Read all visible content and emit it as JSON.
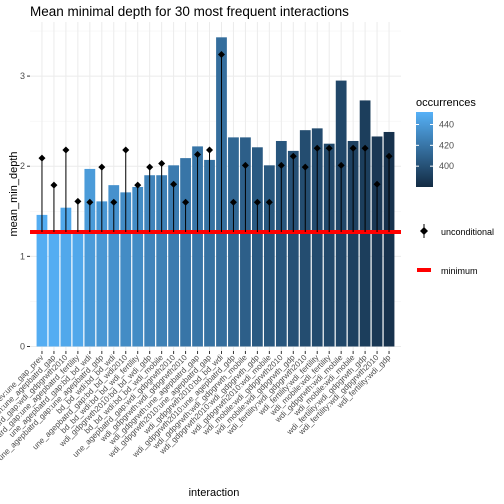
{
  "chart_data": {
    "type": "bar",
    "title": "Mean minimal depth for 30 most frequent interactions",
    "xlabel": "interaction",
    "ylabel": "mean_min_depth",
    "ylim": [
      -0.05,
      3.6
    ],
    "yticks": [
      0,
      1,
      2,
      3
    ],
    "grid": true,
    "categories": [
      "une_ageprev:une_gap_prev",
      "wdi_gdpgrwth:une_agepbatrd_gap",
      "une_agepbatrd_gap:wdi_gdpgrwth2010",
      "une_agepbatrd_gap:une_agepbatrd_fertility",
      "une_agepbatrd_gap:bd_bd_wdi",
      "une_agepbatrd_gap:une_agepbatrd_gdp",
      "bd_bd_wdi:bd_bd_wdi",
      "une_agepbatrd_gap:bd_bd_wdi2010",
      "bd_bd_wdi:bd_bd_wdi_fertility",
      "wdi_gdpgrwth2010:bd_bd_wdi_gdp",
      "bd_bd_wdi:bd_bd_wdi_mobile",
      "une_agepbatrd_gap:wdi_gdpgrwth2010",
      "wdi_gdpgrwth:wdi_gdpgrwth2010",
      "wdi_gdpgrwth:une_agepbatrd_gap",
      "wdi_gdpgrwth2010:une_agepbatrd_gap",
      "wdi_gdpgrwth2010:bd_bd_wdi",
      "wdi_gdpgrwth2010:une_agepbatrd_gdp",
      "wdi_gdpgrwth:wdi_gdpgrwth_mobile",
      "wdi_gdpgrwth2010:wdi_gdpgrwth_gdp",
      "wdi_gdpgrwth2010:wdi_mobile",
      "wdi_mobile:wdi_gdpgrwth2010",
      "wdi_mobile:wdi_gdpgrwth_gdp",
      "wdi_fertility:wdi_gdpgrwth2010",
      "wdi_fertility:wdi_fertility",
      "wdi_mobile:wdi_fertility",
      "wdi_gdpgrwth:wdi_mobile",
      "wdi_mobile:wdi_mobile",
      "wdi_fertility:wdi_gdpgrwth_gdp",
      "wdi_fertility:wdi_gdpgrwth2010",
      "wdi_fertility:wdi_gdp"
    ],
    "mean_min_depth": [
      1.46,
      1.27,
      1.54,
      1.29,
      1.97,
      1.61,
      1.79,
      1.71,
      1.77,
      1.9,
      1.9,
      2.01,
      2.09,
      2.22,
      2.07,
      3.43,
      2.32,
      2.32,
      2.21,
      2.01,
      2.28,
      2.17,
      2.4,
      2.42,
      2.25,
      2.95,
      2.28,
      2.73,
      2.33,
      2.38
    ],
    "unconditional": [
      2.09,
      1.79,
      2.18,
      1.61,
      1.6,
      1.99,
      1.6,
      2.18,
      1.79,
      1.99,
      2.03,
      1.8,
      1.6,
      2.13,
      2.18,
      3.24,
      1.6,
      2.01,
      1.6,
      1.6,
      2.01,
      2.11,
      1.99,
      2.2,
      2.2,
      2.01,
      2.2,
      2.2,
      1.8,
      2.11
    ],
    "occurrences": [
      450,
      450,
      447,
      447,
      440,
      438,
      435,
      432,
      432,
      428,
      426,
      423,
      420,
      420,
      418,
      416,
      412,
      408,
      405,
      404,
      403,
      400,
      398,
      397,
      396,
      395,
      392,
      390,
      387,
      384
    ],
    "minimum": 1.27,
    "legend": {
      "title": "occurrences",
      "placement": "right",
      "ticks": [
        440,
        420,
        400
      ],
      "range": [
        380,
        452
      ],
      "color_low": "#132b43",
      "color_high": "#56b1f7",
      "unconditional_label": "unconditional",
      "minimum_label": "minimum"
    },
    "minimum_color": "#ff0000"
  }
}
